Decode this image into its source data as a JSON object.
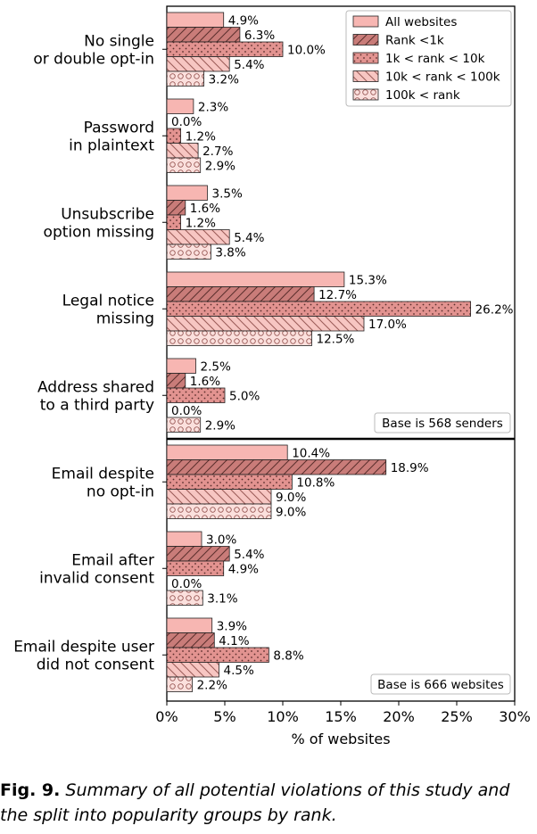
{
  "chart_data": {
    "type": "bar",
    "orientation": "horizontal",
    "xlabel": "% of websites",
    "xlim": [
      0,
      30
    ],
    "xticks": [
      0,
      5,
      10,
      15,
      20,
      25,
      30
    ],
    "xtick_labels": [
      "0%",
      "5%",
      "10%",
      "15%",
      "20%",
      "25%",
      "30%"
    ],
    "legend_position": "top-right",
    "colors": [
      "#f7b6b2",
      "#c97c79",
      "#e29390",
      "#f7c6c2",
      "#fbe0dd"
    ],
    "patterns": [
      "none",
      "diagonal-forward",
      "dots",
      "diagonal-backward",
      "circles"
    ],
    "series": [
      {
        "name": "All websites"
      },
      {
        "name": "Rank <1k"
      },
      {
        "name": "1k < rank < 10k"
      },
      {
        "name": "10k < rank < 100k"
      },
      {
        "name": "100k < rank"
      }
    ],
    "panels": [
      {
        "base_label": "Base is 568 senders",
        "categories": [
          {
            "label": [
              "No single",
              "or double opt-in"
            ],
            "values": [
              4.9,
              6.3,
              10.0,
              5.4,
              3.2
            ]
          },
          {
            "label": [
              "Password",
              "in plaintext"
            ],
            "values": [
              2.3,
              0.0,
              1.2,
              2.7,
              2.9
            ]
          },
          {
            "label": [
              "Unsubscribe",
              "option missing"
            ],
            "values": [
              3.5,
              1.6,
              1.2,
              5.4,
              3.8
            ]
          },
          {
            "label": [
              "Legal notice",
              "missing"
            ],
            "values": [
              15.3,
              12.7,
              26.2,
              17.0,
              12.5
            ]
          },
          {
            "label": [
              "Address shared",
              "to a third party"
            ],
            "values": [
              2.5,
              1.6,
              5.0,
              0.0,
              2.9
            ]
          }
        ]
      },
      {
        "base_label": "Base is 666 websites",
        "categories": [
          {
            "label": [
              "Email despite",
              "no opt-in"
            ],
            "values": [
              10.4,
              18.9,
              10.8,
              9.0,
              9.0
            ]
          },
          {
            "label": [
              "Email after",
              "invalid consent"
            ],
            "values": [
              3.0,
              5.4,
              4.9,
              0.0,
              3.1
            ]
          },
          {
            "label": [
              "Email despite user",
              "did not consent"
            ],
            "values": [
              3.9,
              4.1,
              8.8,
              4.5,
              2.2
            ]
          }
        ]
      }
    ]
  },
  "caption": {
    "fig_label": "Fig. 9.",
    "text": "Summary of all potential violations of this study and the split into popularity groups by rank."
  }
}
